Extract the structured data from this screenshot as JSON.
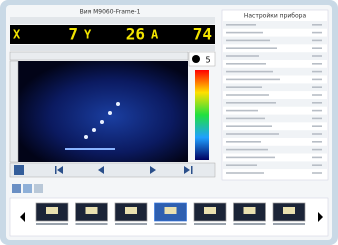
{
  "window": {
    "title": "Вия M9060-Frame-1"
  },
  "readout": {
    "x_label": "X",
    "x_value": "7",
    "y_label": "Y",
    "y_value": "26",
    "a_label": "A",
    "a_value": "74"
  },
  "gain": "5",
  "settings": {
    "title": "Настройки прибора"
  }
}
